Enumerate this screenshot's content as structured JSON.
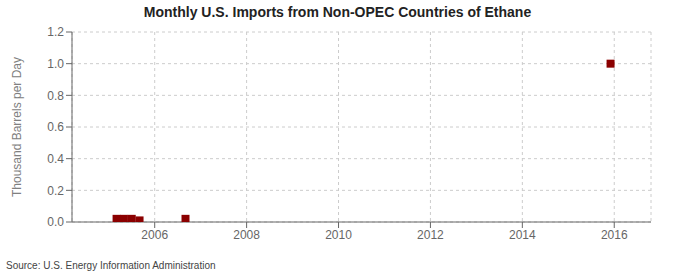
{
  "chart_data": {
    "type": "scatter",
    "title": "Monthly U.S. Imports from Non-OPEC Countries of Ethane",
    "ylabel": "Thousand Barrels per Day",
    "annotations": [
      "Source: U.S. Energy Information Administration"
    ],
    "x": [
      2005.17,
      2005.33,
      2005.5,
      2005.67,
      2006.67,
      2015.92
    ],
    "values": [
      0.02,
      0.02,
      0.02,
      0.01,
      0.02,
      1.0
    ],
    "color": "#8b0000",
    "marker": "square",
    "xlim": [
      2004.2,
      2016.8
    ],
    "xticks": [
      2006,
      2008,
      2010,
      2012,
      2014,
      2016
    ],
    "ylim": [
      0.0,
      1.2
    ],
    "yticks": [
      {
        "value": 0,
        "label": "0.0"
      },
      0.2,
      0.4,
      0.6,
      0.8,
      {
        "value": 1,
        "label": "1.0"
      },
      1.2
    ],
    "grid": true
  }
}
